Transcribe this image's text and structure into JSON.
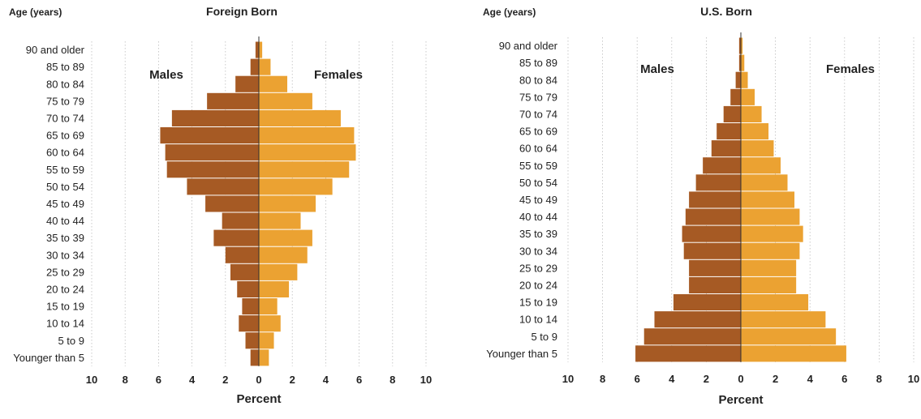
{
  "colors": {
    "males": "#a65a24",
    "females": "#eba232",
    "grid": "#bdbdbd",
    "axis": "#333333",
    "text": "#222222"
  },
  "chart_data": [
    {
      "type": "bar",
      "orientation": "horizontal",
      "chart_kind": "population pyramid",
      "title": "Foreign Born",
      "ylabel": "Age (years)",
      "xlabel": "Percent",
      "xlim": [
        -10,
        10
      ],
      "x_tick_labels": [
        "10",
        "8",
        "6",
        "4",
        "2",
        "0",
        "2",
        "4",
        "6",
        "8",
        "10"
      ],
      "grid": true,
      "categories": [
        "90 and older",
        "85 to 89",
        "80 to 84",
        "75 to 79",
        "70 to 74",
        "65 to 69",
        "60 to 64",
        "55 to 59",
        "50 to 54",
        "45 to 49",
        "40 to 44",
        "35 to 39",
        "30 to 34",
        "25 to 29",
        "20 to 24",
        "15 to 19",
        "10 to 14",
        "5 to 9",
        "Younger than 5"
      ],
      "series": [
        {
          "name": "Males",
          "values": [
            0.2,
            0.5,
            1.4,
            3.1,
            5.2,
            5.9,
            5.6,
            5.5,
            4.3,
            3.2,
            2.2,
            2.7,
            2.0,
            1.7,
            1.3,
            1.0,
            1.2,
            0.8,
            0.5
          ]
        },
        {
          "name": "Females",
          "values": [
            0.2,
            0.7,
            1.7,
            3.2,
            4.9,
            5.7,
            5.8,
            5.4,
            4.4,
            3.4,
            2.5,
            3.2,
            2.9,
            2.3,
            1.8,
            1.1,
            1.3,
            0.9,
            0.6
          ]
        }
      ]
    },
    {
      "type": "bar",
      "orientation": "horizontal",
      "chart_kind": "population pyramid",
      "title": "U.S. Born",
      "ylabel": "Age (years)",
      "xlabel": "Percent",
      "xlim": [
        -10,
        10
      ],
      "x_tick_labels": [
        "10",
        "8",
        "6",
        "4",
        "2",
        "0",
        "2",
        "4",
        "6",
        "8",
        "10"
      ],
      "grid": true,
      "categories": [
        "90 and older",
        "85 to 89",
        "80 to 84",
        "75 to 79",
        "70 to 74",
        "65 to 69",
        "60 to 64",
        "55 to 59",
        "50 to 54",
        "45 to 49",
        "40 to 44",
        "35 to 39",
        "30 to 34",
        "25 to 29",
        "20 to 24",
        "15 to 19",
        "10 to 14",
        "5 to 9",
        "Younger than 5"
      ],
      "series": [
        {
          "name": "Males",
          "values": [
            0.1,
            0.1,
            0.3,
            0.6,
            1.0,
            1.4,
            1.7,
            2.2,
            2.6,
            3.0,
            3.2,
            3.4,
            3.3,
            3.0,
            3.0,
            3.9,
            5.0,
            5.6,
            6.1
          ]
        },
        {
          "name": "Females",
          "values": [
            0.1,
            0.2,
            0.4,
            0.8,
            1.2,
            1.6,
            1.9,
            2.3,
            2.7,
            3.1,
            3.4,
            3.6,
            3.4,
            3.2,
            3.2,
            3.9,
            4.9,
            5.5,
            6.1
          ]
        }
      ]
    }
  ]
}
